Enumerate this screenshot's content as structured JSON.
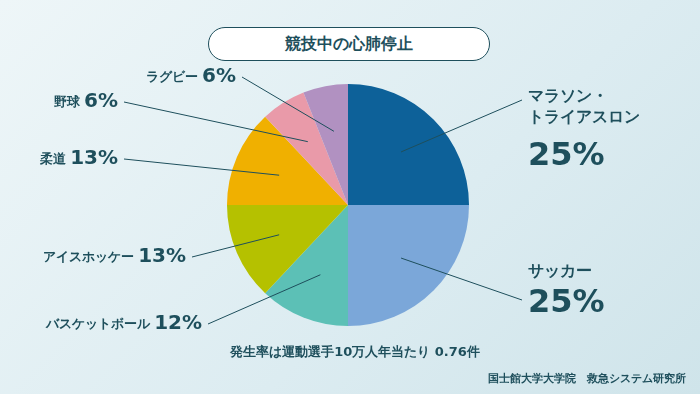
{
  "chart_data": {
    "type": "pie",
    "title": "競技中の心肺停止",
    "categories": [
      "マラソン・トライアスロン",
      "サッカー",
      "バスケットボール",
      "アイスホッケー",
      "柔道",
      "野球",
      "ラグビー"
    ],
    "values": [
      25,
      25,
      12,
      13,
      13,
      6,
      6
    ],
    "value_labels": [
      "25%",
      "25%",
      "12%",
      "13%",
      "13%",
      "6%",
      "6%"
    ],
    "colors": [
      "#0d6199",
      "#7ba7d9",
      "#5cc0b6",
      "#b5c100",
      "#f0b000",
      "#e99aa9",
      "#b191c1"
    ],
    "data_labels": true,
    "annotations": [
      "発生率は運動選手10万人年当たり 0.76件",
      "国士館大学大学院　救急システム研究所"
    ]
  }
}
